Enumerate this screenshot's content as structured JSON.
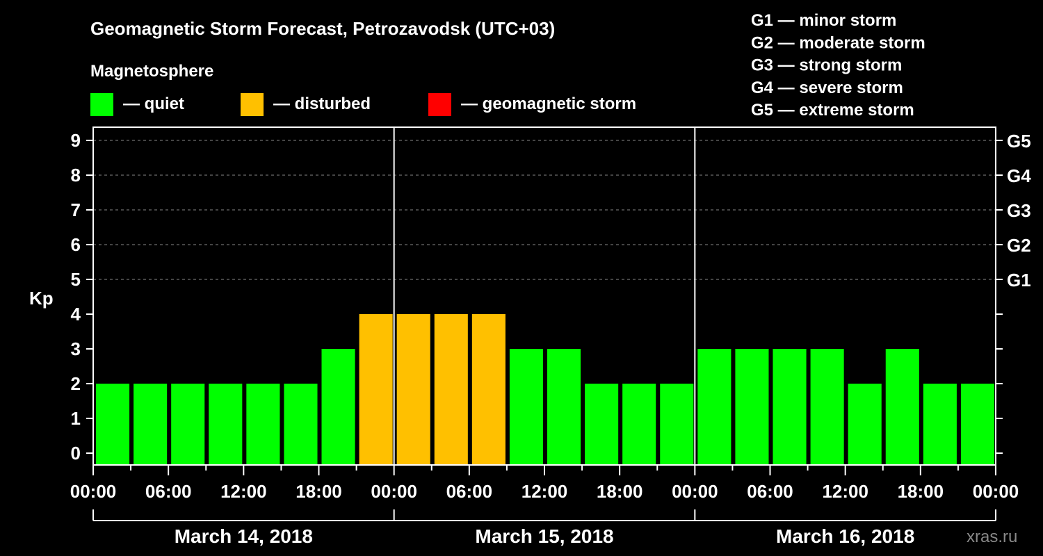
{
  "chart_data": {
    "type": "bar",
    "title": "Geomagnetic Storm Forecast, Petrozavodsk (UTC+03)",
    "legend_title": "Magnetosphere",
    "legend": [
      {
        "label": "— quiet",
        "color": "#00ff00"
      },
      {
        "label": "— disturbed",
        "color": "#ffc000"
      },
      {
        "label": "— geomagnetic storm",
        "color": "#ff0000"
      }
    ],
    "storm_scale": [
      "G1 — minor storm",
      "G2 — moderate storm",
      "G3 — strong storm",
      "G4 — severe storm",
      "G5 — extreme storm"
    ],
    "ylabel": "Kp",
    "ylim": [
      0,
      9
    ],
    "yticks": [
      "0",
      "1",
      "2",
      "3",
      "4",
      "5",
      "6",
      "7",
      "8",
      "9"
    ],
    "right_ticks": [
      {
        "kp": 5,
        "label": "G1"
      },
      {
        "kp": 6,
        "label": "G2"
      },
      {
        "kp": 7,
        "label": "G3"
      },
      {
        "kp": 8,
        "label": "G4"
      },
      {
        "kp": 9,
        "label": "G5"
      }
    ],
    "grid": "dashed at Kp 5-9",
    "xtick_labels": [
      "00:00",
      "06:00",
      "12:00",
      "18:00",
      "00:00",
      "06:00",
      "12:00",
      "18:00",
      "00:00",
      "06:00",
      "12:00",
      "18:00",
      "00:00"
    ],
    "days": [
      "March 14, 2018",
      "March 15, 2018",
      "March 16, 2018"
    ],
    "interval_hours": 3,
    "values": [
      2,
      2,
      2,
      2,
      2,
      2,
      3,
      4,
      4,
      4,
      4,
      3,
      3,
      2,
      2,
      2,
      3,
      3,
      3,
      3,
      2,
      3,
      2,
      2
    ],
    "colors": {
      "quiet": "#00ff00",
      "disturbed": "#ffc000",
      "storm": "#ff0000"
    }
  },
  "watermark": "xras.ru"
}
